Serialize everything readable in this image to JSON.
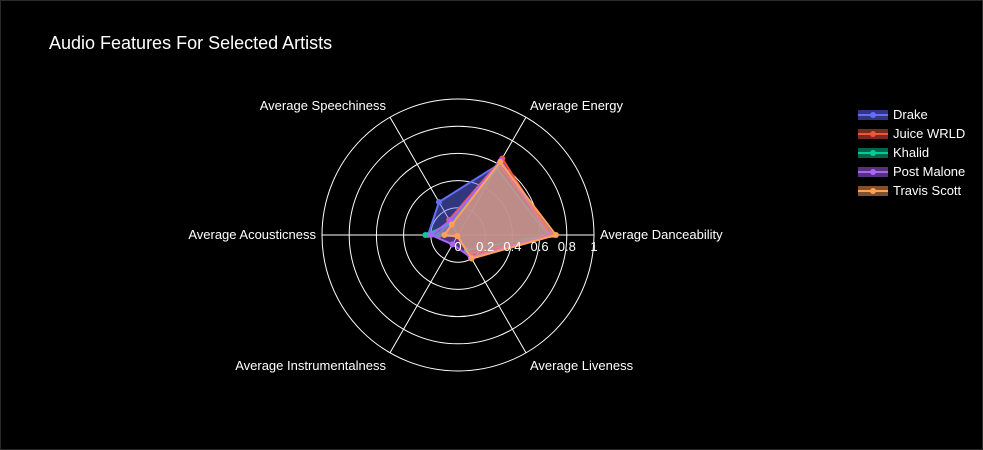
{
  "chart_data": {
    "type": "radar",
    "title": "Audio Features For Selected Artists",
    "axes": [
      "Average Danceability",
      "Average Energy",
      "Average Speechiness",
      "Average Acousticness",
      "Average Instrumentalness",
      "Average Liveness"
    ],
    "radial_ticks": [
      "0",
      "0.2",
      "0.4",
      "0.6",
      "0.8",
      "1"
    ],
    "radial_range": [
      0,
      1
    ],
    "grid": true,
    "legend_position": "top-right",
    "series": [
      {
        "name": "Drake",
        "color": "#636efa",
        "values": [
          0.7,
          0.6,
          0.28,
          0.22,
          0.01,
          0.16
        ]
      },
      {
        "name": "Juice WRLD",
        "color": "#ef553b",
        "values": [
          0.68,
          0.65,
          0.13,
          0.14,
          0.01,
          0.19
        ]
      },
      {
        "name": "Khalid",
        "color": "#00cc96",
        "values": [
          0.66,
          0.57,
          0.1,
          0.24,
          0.01,
          0.13
        ]
      },
      {
        "name": "Post Malone",
        "color": "#ab63fa",
        "values": [
          0.67,
          0.63,
          0.12,
          0.2,
          0.08,
          0.19
        ]
      },
      {
        "name": "Travis Scott",
        "color": "#ffa15a",
        "values": [
          0.72,
          0.62,
          0.09,
          0.1,
          0.01,
          0.2
        ]
      }
    ]
  }
}
